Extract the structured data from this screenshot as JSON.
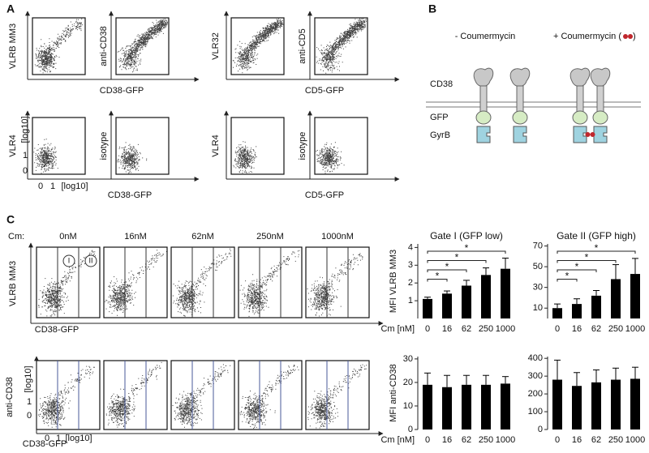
{
  "panel_labels": [
    "A",
    "B",
    "C"
  ],
  "panel_a": {
    "groups": [
      {
        "y_labels": [
          "VLRB MM3",
          "anti-CD38"
        ],
        "x_label": "CD38-GFP"
      },
      {
        "y_labels": [
          "VLR32",
          "anti-CD5"
        ],
        "x_label": "CD5-GFP"
      },
      {
        "y_labels": [
          "VLR4",
          "isotype"
        ],
        "x_label": "CD38-GFP"
      },
      {
        "y_labels": [
          "VLR4",
          "isotype"
        ],
        "x_label": "CD5-GFP"
      }
    ],
    "axis_ticks": {
      "y": [
        "[log10]",
        "1",
        "0"
      ],
      "x": [
        "0",
        "1",
        "[log10]"
      ]
    }
  },
  "panel_b": {
    "conditions": [
      "- Coumermycin",
      "+ Coumermycin ("
    ],
    "closing": ")",
    "proteins": [
      "CD38",
      "GFP",
      "GyrB"
    ]
  },
  "panel_c": {
    "cm_label": "Cm:",
    "concentrations": [
      "0nM",
      "16nM",
      "62nM",
      "250nM",
      "1000nM"
    ],
    "gates": [
      "I",
      "II"
    ],
    "rows": [
      {
        "y_label": "VLRB MM3",
        "x_label": "CD38-GFP"
      },
      {
        "y_label": "anti-CD38",
        "x_label": "CD38-GFP"
      }
    ],
    "axis_ticks": {
      "y": [
        "[log10]",
        "1",
        "0"
      ],
      "x": [
        "0",
        "1",
        "[log10]"
      ]
    }
  },
  "chart_data": [
    {
      "type": "bar",
      "title": "Gate I (GFP low)",
      "y_label": "MFI VLRB MM3",
      "x_label": "Cm [nM]",
      "categories": [
        "0",
        "16",
        "62",
        "250",
        "1000"
      ],
      "values": [
        1.1,
        1.4,
        1.85,
        2.45,
        2.8
      ],
      "errors": [
        0.1,
        0.15,
        0.3,
        0.4,
        0.6
      ],
      "significance_labels": [
        "*",
        "*",
        "*",
        "*"
      ],
      "color": "#000000",
      "ylim": [
        0,
        4.2
      ],
      "yticks": [
        1,
        2,
        3,
        4
      ]
    },
    {
      "type": "bar",
      "title": "Gate II (GFP high)",
      "categories": [
        "0",
        "16",
        "62",
        "250",
        "1000"
      ],
      "values": [
        10,
        14,
        22,
        38,
        43
      ],
      "errors": [
        4,
        5,
        5,
        14,
        15
      ],
      "significance_labels": [
        "*",
        "*",
        "*",
        "*"
      ],
      "color": "#000000",
      "ylim": [
        0,
        72
      ],
      "yticks": [
        10,
        30,
        50,
        70
      ]
    },
    {
      "type": "bar",
      "y_label": "MFI anti-CD38",
      "x_label": "Cm [nM]",
      "categories": [
        "0",
        "16",
        "62",
        "250",
        "1000"
      ],
      "values": [
        19,
        18,
        19,
        19,
        19.5
      ],
      "errors": [
        5,
        5,
        4,
        4,
        3
      ],
      "color": "#000000",
      "ylim": [
        0,
        31
      ],
      "yticks": [
        0,
        10,
        20,
        30
      ]
    },
    {
      "type": "bar",
      "categories": [
        "0",
        "16",
        "62",
        "250",
        "1000"
      ],
      "values": [
        280,
        245,
        265,
        280,
        285
      ],
      "errors": [
        110,
        75,
        70,
        65,
        65
      ],
      "color": "#000000",
      "ylim": [
        0,
        410
      ],
      "yticks": [
        0,
        100,
        200,
        300,
        400
      ]
    }
  ]
}
